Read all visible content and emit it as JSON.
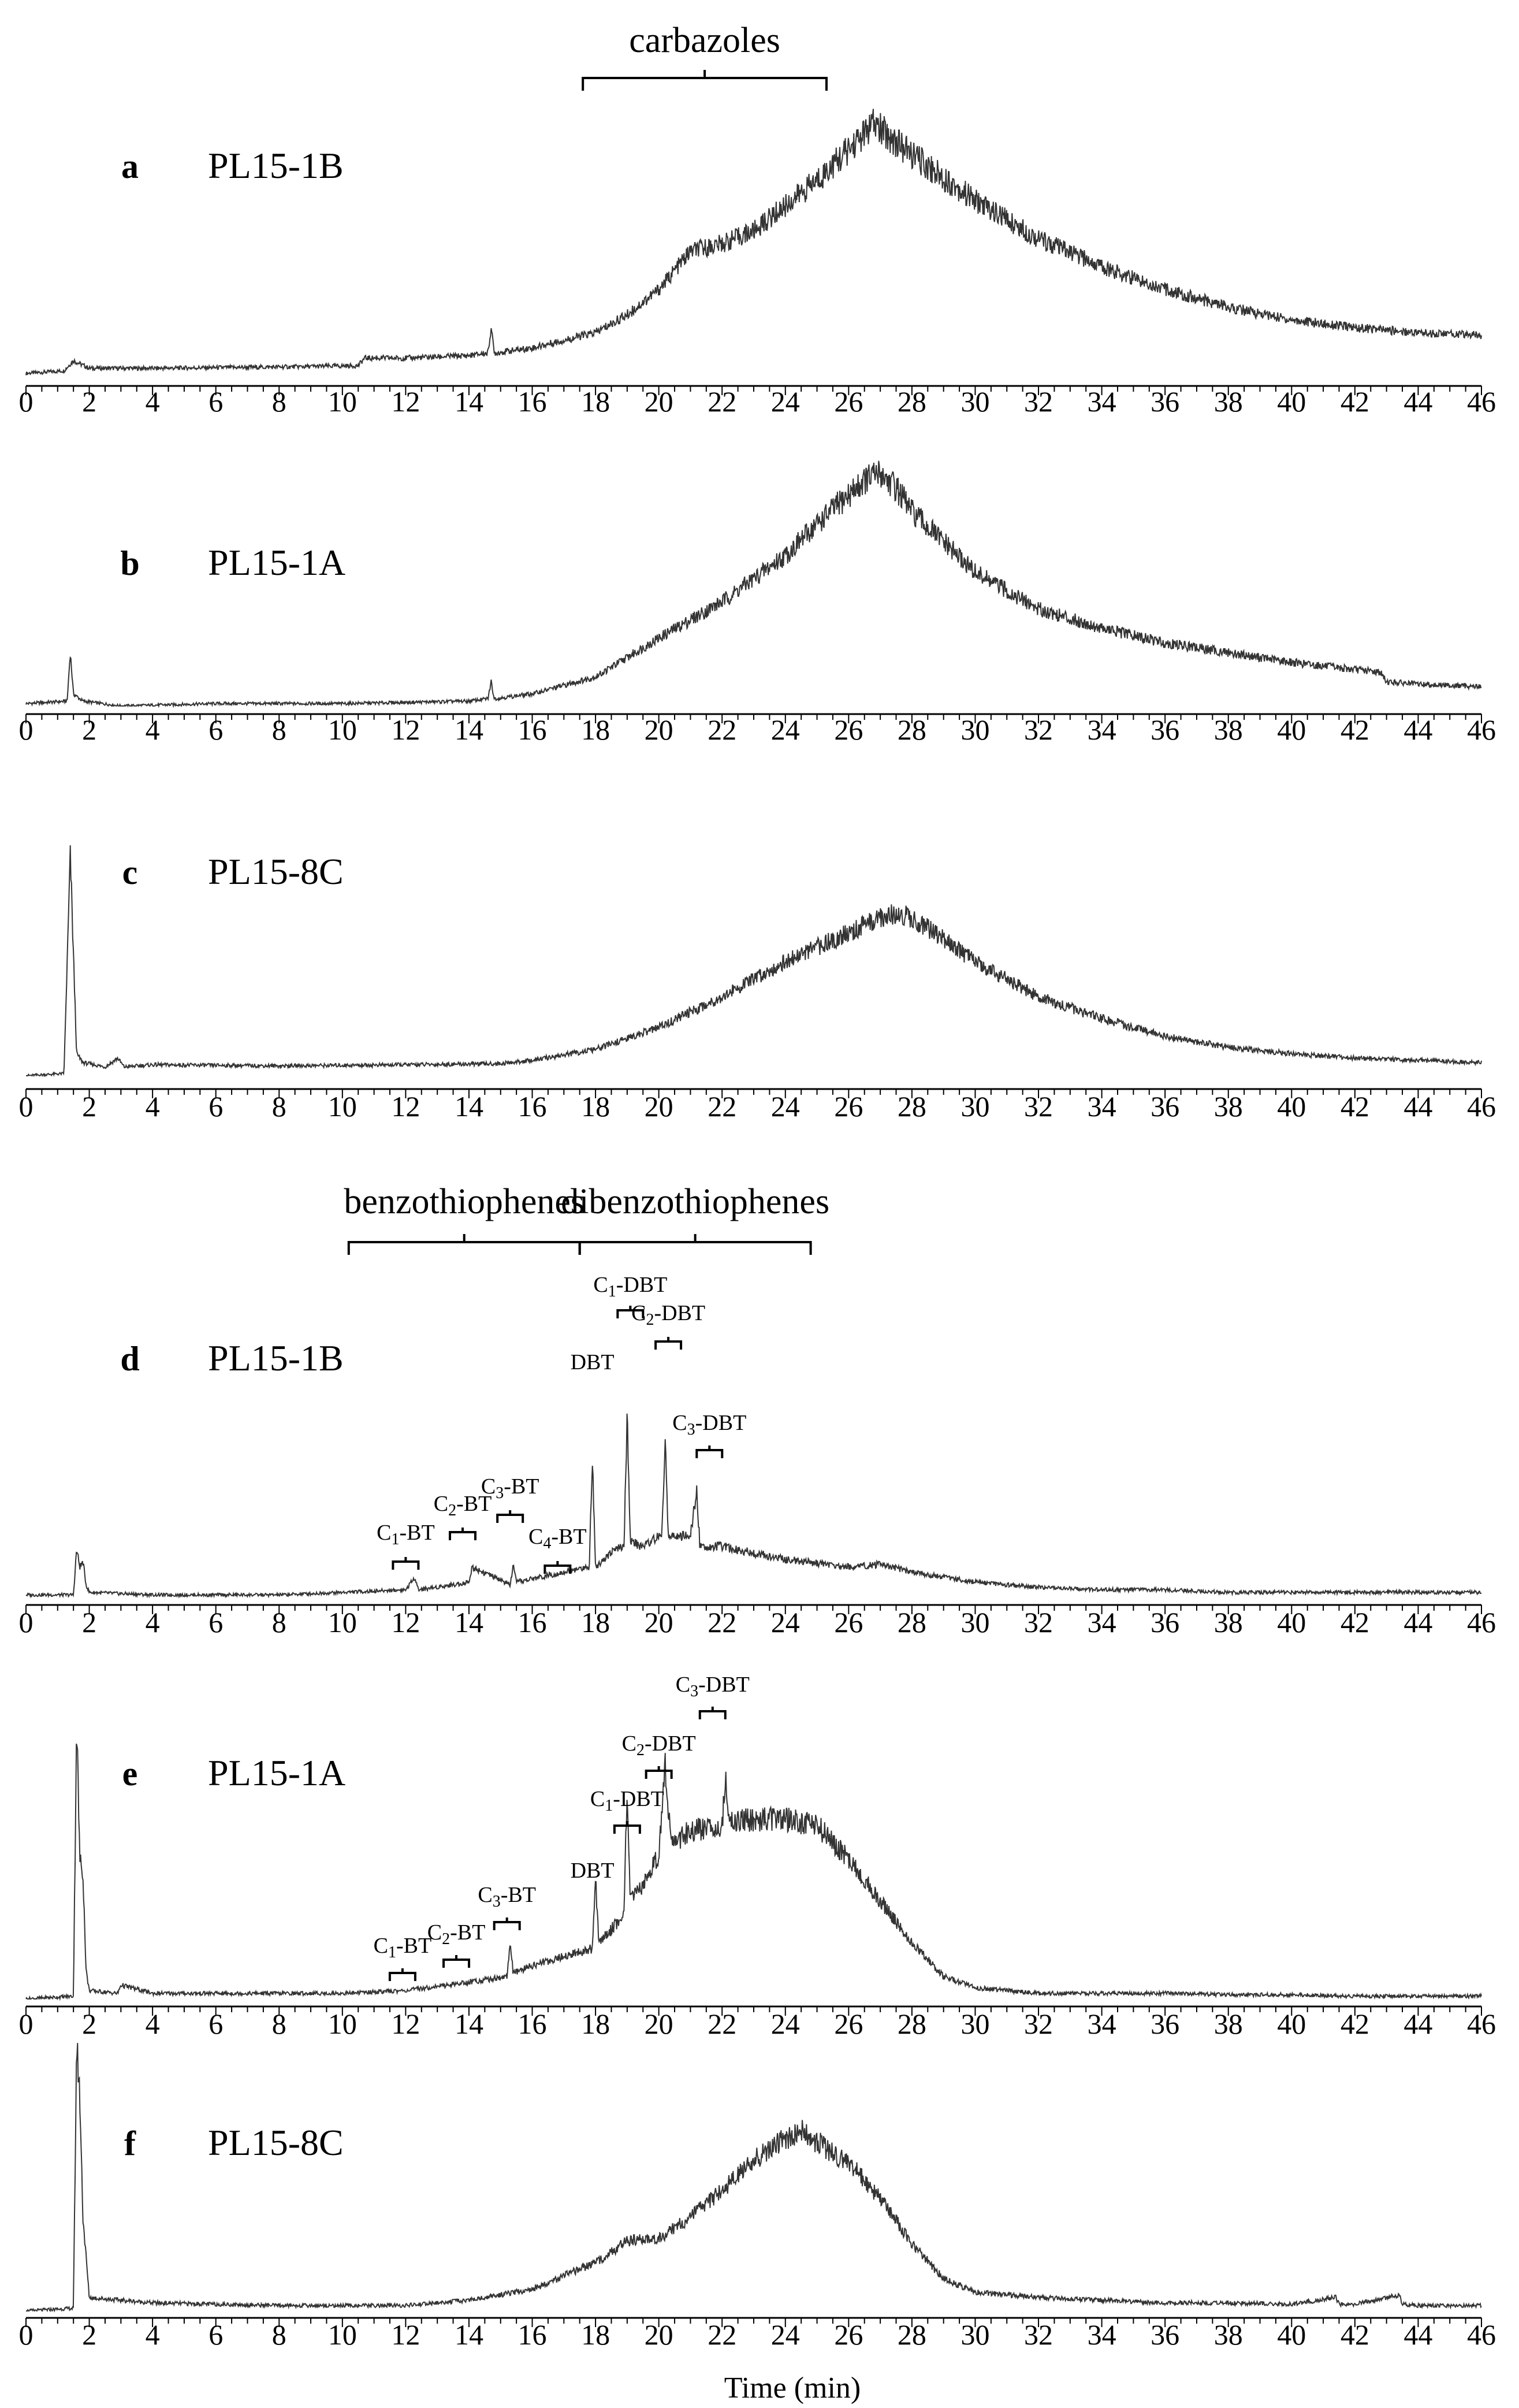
{
  "figure": {
    "xlabel": "Time (min)"
  },
  "chart_data": [
    {
      "type": "line",
      "panel": "a",
      "title": "PL15-1B",
      "xlabel": "",
      "ylabel": "",
      "xlim": [
        0,
        46
      ],
      "xticks": [
        0,
        2,
        4,
        6,
        8,
        10,
        12,
        14,
        16,
        18,
        20,
        22,
        24,
        26,
        28,
        30,
        32,
        34,
        36,
        38,
        40,
        42,
        44,
        46
      ],
      "grid": false,
      "series": [
        {
          "x": [
            0,
            1.2,
            1.5,
            2,
            4,
            8,
            10.5,
            10.7,
            12,
            14,
            14.6,
            14.7,
            14.8,
            16,
            18,
            19,
            20,
            21,
            22,
            23,
            24,
            25,
            26,
            26.8,
            27.5,
            28,
            30,
            32,
            34,
            36,
            38,
            40,
            42,
            44,
            46
          ],
          "y": [
            0.02,
            0.03,
            0.07,
            0.04,
            0.04,
            0.045,
            0.05,
            0.08,
            0.08,
            0.09,
            0.1,
            0.2,
            0.1,
            0.12,
            0.18,
            0.25,
            0.35,
            0.5,
            0.53,
            0.58,
            0.68,
            0.78,
            0.9,
            1.0,
            0.93,
            0.88,
            0.7,
            0.55,
            0.44,
            0.35,
            0.28,
            0.23,
            0.2,
            0.18,
            0.17
          ]
        }
      ],
      "annotations": [
        {
          "label": "carbazoles",
          "from": 17.6,
          "to": 25.3
        }
      ]
    },
    {
      "type": "line",
      "panel": "b",
      "title": "PL15-1A",
      "xlabel": "",
      "ylabel": "",
      "xlim": [
        0,
        46
      ],
      "xticks": [
        0,
        2,
        4,
        6,
        8,
        10,
        12,
        14,
        16,
        18,
        20,
        22,
        24,
        26,
        28,
        30,
        32,
        34,
        36,
        38,
        40,
        42,
        44,
        46
      ],
      "grid": false,
      "series": [
        {
          "x": [
            0,
            1.3,
            1.4,
            1.5,
            1.8,
            3,
            6,
            10,
            14,
            14.6,
            14.7,
            14.8,
            16,
            18,
            20,
            22,
            24,
            25,
            26,
            26.5,
            27,
            27.5,
            28,
            30,
            32,
            34,
            36,
            38,
            40,
            42,
            42.8,
            43,
            44,
            46
          ],
          "y": [
            0.01,
            0.02,
            0.22,
            0.05,
            0.02,
            0.0,
            0.01,
            0.01,
            0.02,
            0.03,
            0.1,
            0.03,
            0.05,
            0.12,
            0.28,
            0.43,
            0.62,
            0.75,
            0.87,
            0.93,
            0.96,
            0.9,
            0.8,
            0.55,
            0.4,
            0.32,
            0.26,
            0.22,
            0.18,
            0.15,
            0.14,
            0.1,
            0.09,
            0.08
          ]
        }
      ],
      "annotations": []
    },
    {
      "type": "line",
      "panel": "c",
      "title": "PL15-8C",
      "xlabel": "",
      "ylabel": "",
      "xlim": [
        0,
        46
      ],
      "xticks": [
        0,
        2,
        4,
        6,
        8,
        10,
        12,
        14,
        16,
        18,
        20,
        22,
        24,
        26,
        28,
        30,
        32,
        34,
        36,
        38,
        40,
        42,
        44,
        46
      ],
      "grid": false,
      "series": [
        {
          "x": [
            0,
            1.2,
            1.4,
            1.6,
            1.8,
            2.5,
            2.9,
            3.1,
            4,
            8,
            12,
            15,
            16,
            18,
            20,
            22,
            24,
            26,
            27,
            27.5,
            28,
            30,
            32,
            34,
            36,
            38,
            40,
            42,
            44,
            46
          ],
          "y": [
            0,
            0.01,
            1.0,
            0.1,
            0.06,
            0.04,
            0.08,
            0.04,
            0.05,
            0.045,
            0.05,
            0.055,
            0.07,
            0.12,
            0.22,
            0.36,
            0.52,
            0.65,
            0.72,
            0.74,
            0.72,
            0.52,
            0.36,
            0.26,
            0.18,
            0.13,
            0.1,
            0.08,
            0.07,
            0.06
          ]
        }
      ],
      "annotations": []
    },
    {
      "type": "line",
      "panel": "d",
      "title": "PL15-1B",
      "xlabel": "",
      "ylabel": "",
      "xlim": [
        0,
        46
      ],
      "xticks": [
        0,
        2,
        4,
        6,
        8,
        10,
        12,
        14,
        16,
        18,
        20,
        22,
        24,
        26,
        28,
        30,
        32,
        34,
        36,
        38,
        40,
        42,
        44,
        46
      ],
      "grid": false,
      "series": [
        {
          "x": [
            0,
            1.5,
            1.6,
            1.7,
            1.8,
            1.9,
            2,
            4,
            8,
            10,
            12,
            12.3,
            12.4,
            13.5,
            14,
            14.1,
            15.3,
            15.4,
            15.5,
            17,
            17.8,
            17.9,
            18,
            18.5,
            18.9,
            19,
            19.1,
            19.5,
            20.1,
            20.2,
            20.3,
            21,
            21.2,
            21.3,
            22,
            24,
            26,
            27,
            28,
            30,
            32,
            34,
            36,
            38,
            40,
            42,
            44,
            46
          ],
          "y": [
            0.01,
            0.01,
            0.19,
            0.12,
            0.14,
            0.05,
            0.02,
            0.01,
            0.01,
            0.02,
            0.03,
            0.08,
            0.03,
            0.05,
            0.06,
            0.12,
            0.05,
            0.12,
            0.06,
            0.1,
            0.12,
            0.55,
            0.12,
            0.18,
            0.2,
            0.72,
            0.22,
            0.2,
            0.25,
            0.63,
            0.24,
            0.24,
            0.42,
            0.2,
            0.2,
            0.15,
            0.12,
            0.13,
            0.1,
            0.06,
            0.04,
            0.03,
            0.03,
            0.02,
            0.02,
            0.02,
            0.02,
            0.02
          ]
        }
      ],
      "annotations": [
        {
          "label": "benzothiophenes",
          "from": 10.2,
          "to": 17.5
        },
        {
          "label": "dibenzothiophenes",
          "from": 17.5,
          "to": 24.8
        }
      ],
      "peak_labels": [
        {
          "sub": "",
          "text": "DBT",
          "x": 17.9
        },
        {
          "sub": "1",
          "text": "-DBT",
          "x": 19.1
        },
        {
          "sub": "2",
          "text": "-DBT",
          "x": 20.3
        },
        {
          "sub": "3",
          "text": "-DBT",
          "x": 21.6
        },
        {
          "sub": "1",
          "text": "-BT",
          "x": 12.0
        },
        {
          "sub": "2",
          "text": "-BT",
          "x": 13.8
        },
        {
          "sub": "3",
          "text": "-BT",
          "x": 15.3
        },
        {
          "sub": "4",
          "text": "-BT",
          "x": 16.8
        }
      ]
    },
    {
      "type": "line",
      "panel": "e",
      "title": "PL15-1A",
      "xlabel": "",
      "ylabel": "",
      "xlim": [
        0,
        46
      ],
      "xticks": [
        0,
        2,
        4,
        6,
        8,
        10,
        12,
        14,
        16,
        18,
        20,
        22,
        24,
        26,
        28,
        30,
        32,
        34,
        36,
        38,
        40,
        42,
        44,
        46
      ],
      "grid": false,
      "series": [
        {
          "x": [
            0,
            1.5,
            1.6,
            1.7,
            1.8,
            1.9,
            2,
            2.9,
            3,
            4,
            8,
            10,
            12,
            14,
            15.2,
            15.3,
            15.4,
            16,
            17.9,
            18,
            18.1,
            18.5,
            18.9,
            19,
            19.1,
            19.5,
            20,
            20.2,
            20.4,
            21,
            22,
            22.1,
            22.2,
            23,
            24,
            25,
            26,
            27,
            28,
            29,
            30,
            32,
            34,
            36,
            38,
            40,
            42,
            44,
            46
          ],
          "y": [
            0.0,
            0.01,
            1.0,
            0.5,
            0.45,
            0.1,
            0.03,
            0.02,
            0.05,
            0.02,
            0.02,
            0.02,
            0.03,
            0.06,
            0.08,
            0.2,
            0.09,
            0.12,
            0.18,
            0.43,
            0.2,
            0.25,
            0.3,
            0.78,
            0.35,
            0.4,
            0.52,
            0.83,
            0.55,
            0.6,
            0.62,
            0.8,
            0.64,
            0.64,
            0.64,
            0.62,
            0.5,
            0.35,
            0.2,
            0.08,
            0.04,
            0.02,
            0.02,
            0.02,
            0.015,
            0.015,
            0.01,
            0.01,
            0.01
          ]
        }
      ],
      "annotations": [],
      "peak_labels": [
        {
          "sub": "",
          "text": "DBT",
          "x": 17.9
        },
        {
          "sub": "1",
          "text": "-DBT",
          "x": 19.0
        },
        {
          "sub": "2",
          "text": "-DBT",
          "x": 20.0
        },
        {
          "sub": "3",
          "text": "-DBT",
          "x": 21.7
        },
        {
          "sub": "1",
          "text": "-BT",
          "x": 11.9
        },
        {
          "sub": "2",
          "text": "-BT",
          "x": 13.6
        },
        {
          "sub": "3",
          "text": "-BT",
          "x": 15.2
        }
      ]
    },
    {
      "type": "line",
      "panel": "f",
      "title": "PL15-8C",
      "xlabel": "Time (min)",
      "ylabel": "",
      "xlim": [
        0,
        46
      ],
      "xticks": [
        0,
        2,
        4,
        6,
        8,
        10,
        12,
        14,
        16,
        18,
        20,
        22,
        24,
        26,
        28,
        30,
        32,
        34,
        36,
        38,
        40,
        42,
        44,
        46
      ],
      "grid": false,
      "series": [
        {
          "x": [
            0,
            1.5,
            1.6,
            1.7,
            1.8,
            1.9,
            2,
            4,
            8,
            12,
            14,
            16,
            18,
            19,
            20,
            21,
            22,
            23,
            24,
            24.5,
            25,
            26,
            27,
            28,
            29,
            30,
            32,
            34,
            36,
            38,
            40,
            41.4,
            41.5,
            42,
            43.4,
            43.5,
            44,
            46
          ],
          "y": [
            0,
            0.01,
            1.0,
            0.8,
            0.35,
            0.2,
            0.05,
            0.03,
            0.02,
            0.02,
            0.04,
            0.08,
            0.18,
            0.26,
            0.27,
            0.35,
            0.45,
            0.56,
            0.64,
            0.67,
            0.63,
            0.55,
            0.42,
            0.25,
            0.12,
            0.07,
            0.05,
            0.04,
            0.03,
            0.03,
            0.025,
            0.05,
            0.025,
            0.025,
            0.06,
            0.025,
            0.02,
            0.02
          ]
        }
      ],
      "annotations": []
    }
  ]
}
